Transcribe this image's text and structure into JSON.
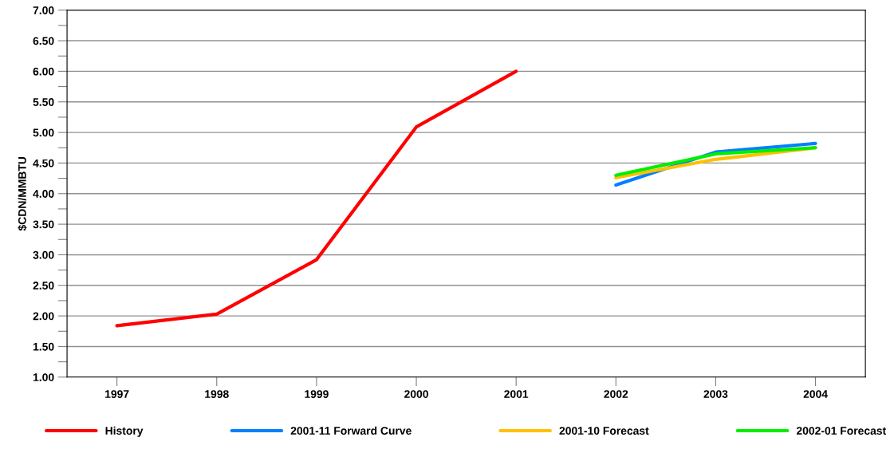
{
  "chart_data": {
    "type": "line",
    "ylabel": "$CDN/MMBTU",
    "categories": [
      "1997",
      "1998",
      "1999",
      "2000",
      "2001",
      "2002",
      "2003",
      "2004"
    ],
    "series": [
      {
        "name": "History",
        "color": "#ff0000",
        "values": [
          1.84,
          2.03,
          2.92,
          5.09,
          6.0,
          null,
          null,
          null
        ]
      },
      {
        "name": "2001-11 Forward Curve",
        "color": "#0080ff",
        "values": [
          null,
          null,
          null,
          null,
          null,
          4.14,
          4.68,
          4.82
        ]
      },
      {
        "name": "2001-10 Forecast",
        "color": "#ffc000",
        "values": [
          null,
          null,
          null,
          null,
          null,
          4.26,
          4.56,
          4.75
        ]
      },
      {
        "name": "2002-01 Forecast",
        "color": "#00ee00",
        "values": [
          null,
          null,
          null,
          null,
          null,
          4.3,
          4.65,
          4.75
        ]
      }
    ],
    "ylim": [
      1,
      7
    ],
    "yticks": [
      {
        "value": 1,
        "label": "1.00"
      },
      {
        "value": 1.25,
        "label": null
      },
      {
        "value": 1.5,
        "label": "1.50"
      },
      {
        "value": 1.75,
        "label": null
      },
      {
        "value": 2,
        "label": "2.00"
      },
      {
        "value": 2.25,
        "label": null
      },
      {
        "value": 2.5,
        "label": "2.50"
      },
      {
        "value": 2.75,
        "label": null
      },
      {
        "value": 3,
        "label": "3.00"
      },
      {
        "value": 3.25,
        "label": null
      },
      {
        "value": 3.5,
        "label": "3.50"
      },
      {
        "value": 3.75,
        "label": null
      },
      {
        "value": 4,
        "label": "4.00"
      },
      {
        "value": 4.25,
        "label": null
      },
      {
        "value": 4.5,
        "label": "4.50"
      },
      {
        "value": 4.75,
        "label": null
      },
      {
        "value": 5,
        "label": "5.00"
      },
      {
        "value": 5.25,
        "label": null
      },
      {
        "value": 5.5,
        "label": "5.50"
      },
      {
        "value": 5.75,
        "label": null
      },
      {
        "value": 6,
        "label": "6.00"
      },
      {
        "value": 6.25,
        "label": null
      },
      {
        "value": 6.5,
        "label": "6.50"
      },
      {
        "value": 6.75,
        "label": null
      },
      {
        "value": 7,
        "label": "7.00"
      }
    ],
    "grid": "y",
    "legend": "bottom",
    "marker": "none",
    "line_style": "solid"
  }
}
